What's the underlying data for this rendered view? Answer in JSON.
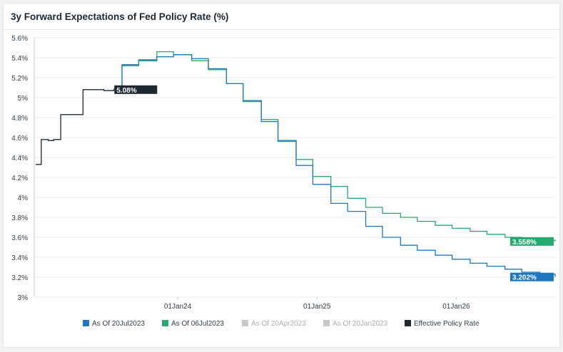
{
  "title": "3y Forward Expectations of Fed Policy Rate (%)",
  "colors": {
    "jul20": "#1f77c0",
    "jul06": "#27a86e",
    "apr20": "#c8c8c8",
    "jan20": "#c8c8c8",
    "effective": "#1d2730",
    "grid": "#e8eaed",
    "axis_text": "#333d47"
  },
  "chart_data": {
    "type": "line",
    "step": true,
    "title": "3y Forward Expectations of Fed Policy Rate (%)",
    "xlabel": "",
    "ylabel": "",
    "ylim": [
      3.0,
      5.6
    ],
    "yticks": [
      "5.6%",
      "5.4%",
      "5.2%",
      "5%",
      "4.8%",
      "4.6%",
      "4.4%",
      "4.2%",
      "4%",
      "3.8%",
      "3.6%",
      "3.4%",
      "3.2%",
      "3%"
    ],
    "ytick_values": [
      5.6,
      5.4,
      5.2,
      5.0,
      4.8,
      4.6,
      4.4,
      4.2,
      4.0,
      3.8,
      3.6,
      3.4,
      3.2,
      3.0
    ],
    "xlim": [
      2022.97,
      2026.71
    ],
    "xticks": [
      "01Jan24",
      "01Jan25",
      "01Jan26"
    ],
    "xtick_values": [
      2024.0,
      2025.0,
      2026.0
    ],
    "grid": "horizontal",
    "legend_position": "bottom",
    "series": [
      {
        "name": "As Of 20Jul2023",
        "color_key": "jul20",
        "visible": true,
        "x": [
          2023.54,
          2023.6,
          2023.72,
          2023.85,
          2023.97,
          2024.1,
          2024.22,
          2024.35,
          2024.47,
          2024.6,
          2024.72,
          2024.85,
          2024.97,
          2025.1,
          2025.22,
          2025.35,
          2025.47,
          2025.6,
          2025.72,
          2025.85,
          2025.97,
          2026.1,
          2026.22,
          2026.35,
          2026.47,
          2026.6,
          2026.71
        ],
        "values": [
          5.08,
          5.33,
          5.37,
          5.41,
          5.43,
          5.39,
          5.29,
          5.14,
          4.97,
          4.76,
          4.57,
          4.32,
          4.13,
          3.94,
          3.86,
          3.71,
          3.6,
          3.52,
          3.47,
          3.42,
          3.38,
          3.34,
          3.31,
          3.28,
          3.25,
          3.23,
          3.202
        ],
        "end_label": "3.202%"
      },
      {
        "name": "As Of 06Jul2023",
        "color_key": "jul06",
        "visible": true,
        "x": [
          2023.54,
          2023.6,
          2023.72,
          2023.85,
          2023.97,
          2024.1,
          2024.22,
          2024.35,
          2024.47,
          2024.6,
          2024.72,
          2024.85,
          2024.97,
          2025.1,
          2025.22,
          2025.35,
          2025.47,
          2025.6,
          2025.72,
          2025.85,
          2025.97,
          2026.1,
          2026.22,
          2026.35,
          2026.47,
          2026.6,
          2026.71
        ],
        "values": [
          5.09,
          5.32,
          5.38,
          5.46,
          5.43,
          5.37,
          5.28,
          5.14,
          4.96,
          4.78,
          4.56,
          4.38,
          4.21,
          4.11,
          3.99,
          3.9,
          3.84,
          3.8,
          3.76,
          3.72,
          3.69,
          3.66,
          3.63,
          3.6,
          3.59,
          3.57,
          3.558
        ],
        "end_label": "3.558%"
      },
      {
        "name": "As Of 20Apr2023",
        "color_key": "apr20",
        "visible": false,
        "x": [],
        "values": []
      },
      {
        "name": "As Of 20Jan2023",
        "color_key": "jan20",
        "visible": false,
        "x": [],
        "values": []
      },
      {
        "name": "Effective Policy Rate",
        "color_key": "effective",
        "visible": true,
        "x": [
          2022.98,
          2023.0,
          2023.02,
          2023.07,
          2023.11,
          2023.16,
          2023.24,
          2023.32,
          2023.4,
          2023.47,
          2023.54
        ],
        "values": [
          4.33,
          4.33,
          4.58,
          4.57,
          4.58,
          4.83,
          4.83,
          5.08,
          5.08,
          5.07,
          5.08
        ],
        "end_label": "5.08%"
      }
    ]
  },
  "legend": [
    {
      "label": "As Of 20Jul2023",
      "color_key": "jul20",
      "active": true
    },
    {
      "label": "As Of 06Jul2023",
      "color_key": "jul06",
      "active": true
    },
    {
      "label": "As Of 20Apr2023",
      "color_key": "apr20",
      "active": false
    },
    {
      "label": "As Of 20Jan2023",
      "color_key": "jan20",
      "active": false
    },
    {
      "label": "Effective Policy Rate",
      "color_key": "effective",
      "active": true
    }
  ]
}
